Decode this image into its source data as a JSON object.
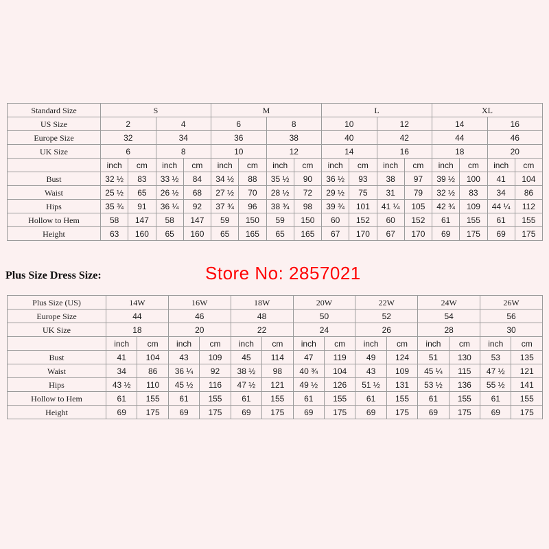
{
  "page": {
    "watermark": "Store No: 2857021",
    "plus_heading": "Plus Size Dress Size:",
    "colors": {
      "background": "#fcf1f1",
      "watermark": "#ff0000",
      "table_border": "#9b9b9b"
    }
  },
  "standard_table": {
    "corner_label": "Standard Size",
    "groups": [
      "S",
      "M",
      "L",
      "XL"
    ],
    "group_span": 4,
    "col_count": 16,
    "unit_count": 8,
    "units": [
      "inch",
      "cm"
    ],
    "size_rows": [
      {
        "label": "US Size",
        "values": [
          "2",
          "4",
          "6",
          "8",
          "10",
          "12",
          "14",
          "16"
        ]
      },
      {
        "label": "Europe Size",
        "values": [
          "32",
          "34",
          "36",
          "38",
          "40",
          "42",
          "44",
          "46"
        ]
      },
      {
        "label": "UK Size",
        "values": [
          "6",
          "8",
          "10",
          "12",
          "14",
          "16",
          "18",
          "20"
        ]
      }
    ],
    "measure_rows": [
      {
        "label": "Bust",
        "values": [
          "32 ½",
          "83",
          "33 ½",
          "84",
          "34 ½",
          "88",
          "35 ½",
          "90",
          "36 ½",
          "93",
          "38",
          "97",
          "39 ½",
          "100",
          "41",
          "104"
        ]
      },
      {
        "label": "Waist",
        "values": [
          "25 ½",
          "65",
          "26 ½",
          "68",
          "27 ½",
          "70",
          "28 ½",
          "72",
          "29 ½",
          "75",
          "31",
          "79",
          "32 ½",
          "83",
          "34",
          "86"
        ]
      },
      {
        "label": "Hips",
        "values": [
          "35 ¾",
          "91",
          "36 ¼",
          "92",
          "37 ¾",
          "96",
          "38 ¾",
          "98",
          "39 ¾",
          "101",
          "41 ¼",
          "105",
          "42 ¾",
          "109",
          "44 ¼",
          "112"
        ]
      },
      {
        "label": "Hollow to Hem",
        "values": [
          "58",
          "147",
          "58",
          "147",
          "59",
          "150",
          "59",
          "150",
          "60",
          "152",
          "60",
          "152",
          "61",
          "155",
          "61",
          "155"
        ]
      },
      {
        "label": "Height",
        "values": [
          "63",
          "160",
          "65",
          "160",
          "65",
          "165",
          "65",
          "165",
          "67",
          "170",
          "67",
          "170",
          "69",
          "175",
          "69",
          "175"
        ]
      }
    ]
  },
  "plus_table": {
    "corner_label": "Plus Size (US)",
    "groups": [
      "14W",
      "16W",
      "18W",
      "20W",
      "22W",
      "24W",
      "26W"
    ],
    "group_span": 2,
    "col_count": 14,
    "unit_count": 7,
    "units": [
      "inch",
      "cm"
    ],
    "size_rows": [
      {
        "label": "Europe Size",
        "values": [
          "44",
          "46",
          "48",
          "50",
          "52",
          "54",
          "56"
        ]
      },
      {
        "label": "UK Size",
        "values": [
          "18",
          "20",
          "22",
          "24",
          "26",
          "28",
          "30"
        ]
      }
    ],
    "measure_rows": [
      {
        "label": "Bust",
        "values": [
          "41",
          "104",
          "43",
          "109",
          "45",
          "114",
          "47",
          "119",
          "49",
          "124",
          "51",
          "130",
          "53",
          "135"
        ]
      },
      {
        "label": "Waist",
        "values": [
          "34",
          "86",
          "36 ¼",
          "92",
          "38 ½",
          "98",
          "40 ¾",
          "104",
          "43",
          "109",
          "45 ¼",
          "115",
          "47 ½",
          "121"
        ]
      },
      {
        "label": "Hips",
        "values": [
          "43 ½",
          "110",
          "45 ½",
          "116",
          "47 ½",
          "121",
          "49 ½",
          "126",
          "51 ½",
          "131",
          "53 ½",
          "136",
          "55 ½",
          "141"
        ]
      },
      {
        "label": "Hollow to Hem",
        "values": [
          "61",
          "155",
          "61",
          "155",
          "61",
          "155",
          "61",
          "155",
          "61",
          "155",
          "61",
          "155",
          "61",
          "155"
        ]
      },
      {
        "label": "Height",
        "values": [
          "69",
          "175",
          "69",
          "175",
          "69",
          "175",
          "69",
          "175",
          "69",
          "175",
          "69",
          "175",
          "69",
          "175"
        ]
      }
    ]
  }
}
